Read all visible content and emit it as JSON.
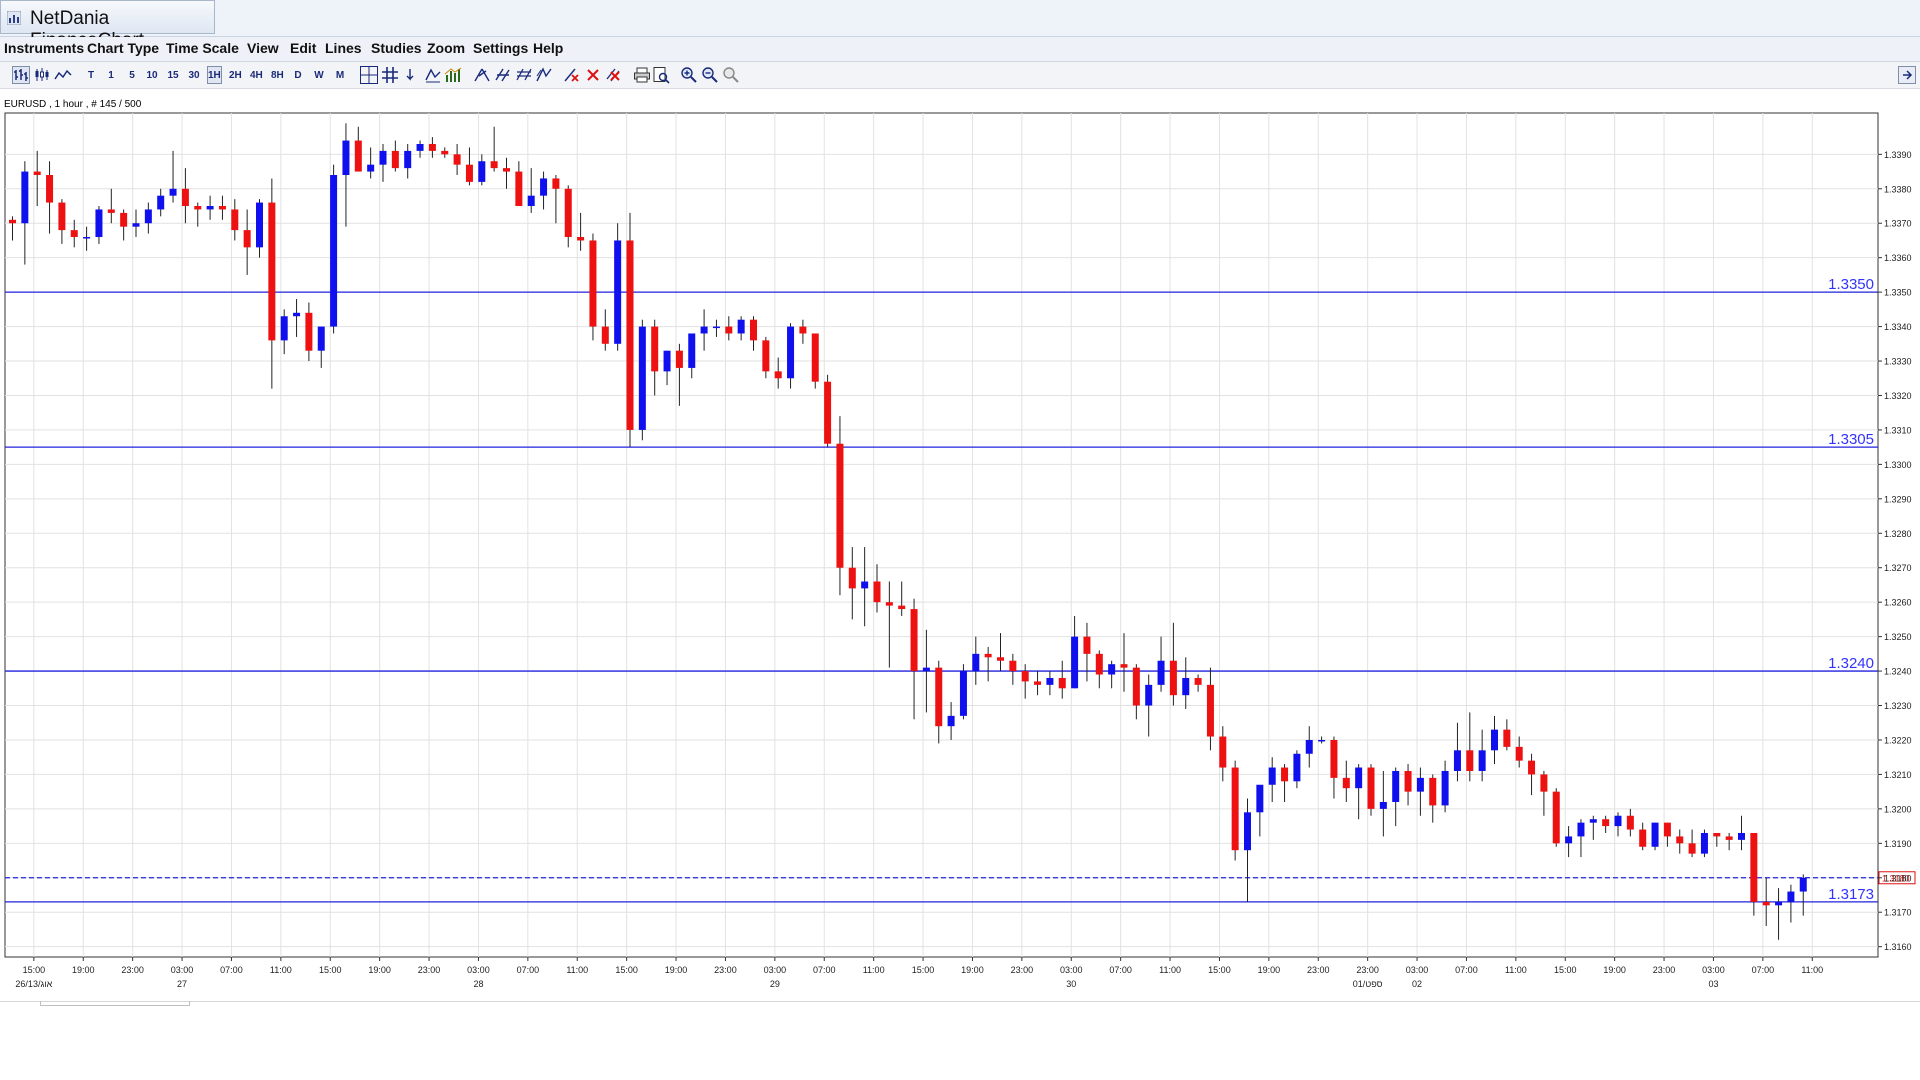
{
  "window": {
    "title": "NetDania FinanceChart"
  },
  "menu": [
    "Instruments",
    "Chart Type",
    "Time Scale",
    "View",
    "Edit",
    "Lines",
    "Studies",
    "Zoom",
    "Settings",
    "Help"
  ],
  "toolbar": {
    "timescales": [
      "T",
      "1",
      "5",
      "10",
      "15",
      "30",
      "1H",
      "2H",
      "4H",
      "8H",
      "D",
      "W",
      "M"
    ],
    "active_timescale": "1H",
    "icons": [
      "bar-chart-icon",
      "candle-chart-icon",
      "line-chart-icon",
      "crosshair-icon",
      "grid-icon",
      "trend-arrow-icon",
      "study-icon",
      "indicator-icon",
      "line-tool-icon",
      "parallel-lines-icon",
      "fibonacci-icon",
      "channel-icon",
      "delete-line-icon",
      "delete-all-icon",
      "print-icon",
      "print-preview-icon",
      "zoom-in-icon",
      "zoom-out-icon",
      "zoom-reset-icon"
    ]
  },
  "instrument_label": "EURUSD , 1 hour , # 145 / 500",
  "colors": {
    "up": "#1010ee",
    "down": "#ee1111",
    "level_line": "#2222dd",
    "grid": "#e2e2e2",
    "level_text": "#3333ff"
  },
  "chart_data": {
    "type": "candlestick",
    "instrument": "EURUSD",
    "interval": "1 hour",
    "ylim": [
      1.3157,
      1.3402
    ],
    "yticks": [
      "1.3160",
      "1.3170",
      "1.3180",
      "1.3190",
      "1.3200",
      "1.3210",
      "1.3220",
      "1.3230",
      "1.3240",
      "1.3250",
      "1.3260",
      "1.3270",
      "1.3280",
      "1.3290",
      "1.3300",
      "1.3310",
      "1.3320",
      "1.3330",
      "1.3340",
      "1.3350",
      "1.3360",
      "1.3370",
      "1.3380",
      "1.3390"
    ],
    "xtick_labels": [
      "15:00",
      "19:00",
      "23:00",
      "03:00",
      "07:00",
      "11:00",
      "15:00",
      "19:00",
      "23:00",
      "03:00",
      "07:00",
      "11:00",
      "15:00",
      "19:00",
      "23:00",
      "03:00",
      "07:00",
      "11:00",
      "15:00",
      "19:00",
      "23:00",
      "03:00",
      "07:00",
      "11:00",
      "15:00",
      "19:00",
      "23:00",
      "23:00",
      "03:00",
      "07:00",
      "11:00",
      "15:00",
      "19:00",
      "23:00",
      "03:00",
      "07:00",
      "11:00"
    ],
    "date_labels": [
      {
        "label": "26/13/אוג",
        "after_tick": 0
      },
      {
        "label": "27",
        "after_tick": 3
      },
      {
        "label": "28",
        "after_tick": 9
      },
      {
        "label": "29",
        "after_tick": 15
      },
      {
        "label": "30",
        "after_tick": 21
      },
      {
        "label": "01/ספט",
        "after_tick": 27
      },
      {
        "label": "02",
        "after_tick": 28
      },
      {
        "label": "03",
        "after_tick": 34
      }
    ],
    "horizontal_levels": [
      {
        "value": 1.335,
        "label": "1.3350"
      },
      {
        "value": 1.3305,
        "label": "1.3305"
      },
      {
        "value": 1.324,
        "label": "1.3240"
      },
      {
        "value": 1.3173,
        "label": "1.3173"
      }
    ],
    "current_price": {
      "value": 1.318,
      "label": "1.3180"
    },
    "candles": [
      [
        1.3371,
        1.3372,
        1.3365,
        1.337
      ],
      [
        1.337,
        1.3388,
        1.3358,
        1.3385
      ],
      [
        1.3385,
        1.3391,
        1.3375,
        1.3384
      ],
      [
        1.3384,
        1.3388,
        1.3367,
        1.3376
      ],
      [
        1.3376,
        1.3377,
        1.3364,
        1.3368
      ],
      [
        1.3368,
        1.3371,
        1.3363,
        1.3366
      ],
      [
        1.3366,
        1.3369,
        1.3362,
        1.3366
      ],
      [
        1.3366,
        1.3375,
        1.3364,
        1.3374
      ],
      [
        1.3374,
        1.338,
        1.337,
        1.3373
      ],
      [
        1.3373,
        1.3374,
        1.3365,
        1.3369
      ],
      [
        1.3369,
        1.3374,
        1.3366,
        1.337
      ],
      [
        1.337,
        1.3376,
        1.3367,
        1.3374
      ],
      [
        1.3374,
        1.338,
        1.3372,
        1.3378
      ],
      [
        1.3378,
        1.3391,
        1.3376,
        1.338
      ],
      [
        1.338,
        1.3386,
        1.337,
        1.3375
      ],
      [
        1.3375,
        1.3376,
        1.3369,
        1.3374
      ],
      [
        1.3374,
        1.3378,
        1.3371,
        1.3375
      ],
      [
        1.3375,
        1.3378,
        1.3371,
        1.3374
      ],
      [
        1.3374,
        1.3377,
        1.3365,
        1.3368
      ],
      [
        1.3368,
        1.3374,
        1.3355,
        1.3363
      ],
      [
        1.3363,
        1.3377,
        1.336,
        1.3376
      ],
      [
        1.3376,
        1.3383,
        1.3322,
        1.3336
      ],
      [
        1.3336,
        1.3345,
        1.3332,
        1.3343
      ],
      [
        1.3343,
        1.3348,
        1.3337,
        1.3344
      ],
      [
        1.3344,
        1.3347,
        1.333,
        1.3333
      ],
      [
        1.3333,
        1.334,
        1.3328,
        1.334
      ],
      [
        1.334,
        1.3387,
        1.3338,
        1.3384
      ],
      [
        1.3384,
        1.3399,
        1.3369,
        1.3394
      ],
      [
        1.3394,
        1.3398,
        1.3385,
        1.3385
      ],
      [
        1.3385,
        1.3392,
        1.3383,
        1.3387
      ],
      [
        1.3387,
        1.3393,
        1.3382,
        1.3391
      ],
      [
        1.3391,
        1.3394,
        1.3385,
        1.3386
      ],
      [
        1.3386,
        1.3393,
        1.3383,
        1.3391
      ],
      [
        1.3391,
        1.3394,
        1.3389,
        1.3393
      ],
      [
        1.3393,
        1.3395,
        1.3389,
        1.3391
      ],
      [
        1.3391,
        1.3392,
        1.3389,
        1.339
      ],
      [
        1.339,
        1.3393,
        1.3384,
        1.3387
      ],
      [
        1.3387,
        1.3392,
        1.3381,
        1.3382
      ],
      [
        1.3382,
        1.339,
        1.3381,
        1.3388
      ],
      [
        1.3388,
        1.3398,
        1.3385,
        1.3386
      ],
      [
        1.3386,
        1.3389,
        1.338,
        1.3385
      ],
      [
        1.3385,
        1.3388,
        1.3375,
        1.3375
      ],
      [
        1.3375,
        1.3386,
        1.3373,
        1.3378
      ],
      [
        1.3378,
        1.3385,
        1.3374,
        1.3383
      ],
      [
        1.3383,
        1.3384,
        1.337,
        1.338
      ],
      [
        1.338,
        1.3381,
        1.3363,
        1.3366
      ],
      [
        1.3366,
        1.3373,
        1.3362,
        1.3365
      ],
      [
        1.3365,
        1.3367,
        1.3336,
        1.334
      ],
      [
        1.334,
        1.3345,
        1.3333,
        1.3335
      ],
      [
        1.3335,
        1.337,
        1.3333,
        1.3365
      ],
      [
        1.3365,
        1.3373,
        1.3305,
        1.331
      ],
      [
        1.331,
        1.3342,
        1.3307,
        1.334
      ],
      [
        1.334,
        1.3342,
        1.332,
        1.3327
      ],
      [
        1.3327,
        1.3333,
        1.3323,
        1.3333
      ],
      [
        1.3333,
        1.3335,
        1.3317,
        1.3328
      ],
      [
        1.3328,
        1.3337,
        1.3325,
        1.3338
      ],
      [
        1.3338,
        1.3345,
        1.3333,
        1.334
      ],
      [
        1.334,
        1.3342,
        1.3337,
        1.334
      ],
      [
        1.334,
        1.3343,
        1.3336,
        1.3338
      ],
      [
        1.3338,
        1.3343,
        1.3336,
        1.3342
      ],
      [
        1.3342,
        1.3343,
        1.3333,
        1.3336
      ],
      [
        1.3336,
        1.3337,
        1.3325,
        1.3327
      ],
      [
        1.3327,
        1.3331,
        1.3322,
        1.3325
      ],
      [
        1.3325,
        1.3341,
        1.3322,
        1.334
      ],
      [
        1.334,
        1.3342,
        1.3335,
        1.3338
      ],
      [
        1.3338,
        1.3338,
        1.3322,
        1.3324
      ],
      [
        1.3324,
        1.3326,
        1.3305,
        1.3306
      ],
      [
        1.3306,
        1.3314,
        1.3262,
        1.327
      ],
      [
        1.327,
        1.3276,
        1.3255,
        1.3264
      ],
      [
        1.3264,
        1.3276,
        1.3253,
        1.3266
      ],
      [
        1.3266,
        1.3271,
        1.3257,
        1.326
      ],
      [
        1.326,
        1.3266,
        1.3241,
        1.3259
      ],
      [
        1.3259,
        1.3266,
        1.3256,
        1.3258
      ],
      [
        1.3258,
        1.3261,
        1.3226,
        1.324
      ],
      [
        1.324,
        1.3252,
        1.3228,
        1.3241
      ],
      [
        1.3241,
        1.3243,
        1.3219,
        1.3224
      ],
      [
        1.3224,
        1.3231,
        1.322,
        1.3227
      ],
      [
        1.3227,
        1.3242,
        1.3226,
        1.324
      ],
      [
        1.324,
        1.325,
        1.3236,
        1.3245
      ],
      [
        1.3245,
        1.3247,
        1.3237,
        1.3244
      ],
      [
        1.3244,
        1.3251,
        1.324,
        1.3243
      ],
      [
        1.3243,
        1.3245,
        1.3236,
        1.324
      ],
      [
        1.324,
        1.3242,
        1.3232,
        1.3237
      ],
      [
        1.3237,
        1.324,
        1.3233,
        1.3236
      ],
      [
        1.3236,
        1.324,
        1.3233,
        1.3238
      ],
      [
        1.3238,
        1.3243,
        1.3232,
        1.3235
      ],
      [
        1.3235,
        1.3256,
        1.3235,
        1.325
      ],
      [
        1.325,
        1.3254,
        1.3237,
        1.3245
      ],
      [
        1.3245,
        1.3246,
        1.3235,
        1.3239
      ],
      [
        1.3239,
        1.3243,
        1.3235,
        1.3242
      ],
      [
        1.3242,
        1.3251,
        1.3234,
        1.3241
      ],
      [
        1.3241,
        1.3242,
        1.3226,
        1.323
      ],
      [
        1.323,
        1.3239,
        1.3221,
        1.3236
      ],
      [
        1.3236,
        1.325,
        1.3234,
        1.3243
      ],
      [
        1.3243,
        1.3254,
        1.323,
        1.3233
      ],
      [
        1.3233,
        1.3244,
        1.3229,
        1.3238
      ],
      [
        1.3238,
        1.3239,
        1.3234,
        1.3236
      ],
      [
        1.3236,
        1.3241,
        1.3217,
        1.3221
      ],
      [
        1.3221,
        1.3224,
        1.3208,
        1.3212
      ],
      [
        1.3212,
        1.3214,
        1.3185,
        1.3188
      ],
      [
        1.3188,
        1.3203,
        1.3173,
        1.3199
      ],
      [
        1.3199,
        1.3206,
        1.3192,
        1.3207
      ],
      [
        1.3207,
        1.3215,
        1.3202,
        1.3212
      ],
      [
        1.3212,
        1.3213,
        1.3202,
        1.3208
      ],
      [
        1.3208,
        1.3217,
        1.3206,
        1.3216
      ],
      [
        1.3216,
        1.3224,
        1.3212,
        1.322
      ],
      [
        1.322,
        1.3221,
        1.3219,
        1.322
      ],
      [
        1.322,
        1.3221,
        1.3203,
        1.3209
      ],
      [
        1.3209,
        1.3214,
        1.3202,
        1.3206
      ],
      [
        1.3206,
        1.3213,
        1.3197,
        1.3212
      ],
      [
        1.3212,
        1.3213,
        1.3198,
        1.32
      ],
      [
        1.32,
        1.3211,
        1.3192,
        1.3202
      ],
      [
        1.3202,
        1.3212,
        1.3195,
        1.3211
      ],
      [
        1.3211,
        1.3213,
        1.3201,
        1.3205
      ],
      [
        1.3205,
        1.3212,
        1.3198,
        1.3209
      ],
      [
        1.3209,
        1.321,
        1.3196,
        1.3201
      ],
      [
        1.3201,
        1.3214,
        1.3199,
        1.3211
      ],
      [
        1.3211,
        1.3225,
        1.3208,
        1.3217
      ],
      [
        1.3217,
        1.3228,
        1.3208,
        1.3211
      ],
      [
        1.3211,
        1.3223,
        1.3208,
        1.3217
      ],
      [
        1.3217,
        1.3227,
        1.3213,
        1.3223
      ],
      [
        1.3223,
        1.3226,
        1.3217,
        1.3218
      ],
      [
        1.3218,
        1.3221,
        1.3212,
        1.3214
      ],
      [
        1.3214,
        1.3216,
        1.3204,
        1.321
      ],
      [
        1.321,
        1.3211,
        1.3198,
        1.3205
      ],
      [
        1.3205,
        1.3206,
        1.3189,
        1.319
      ],
      [
        1.319,
        1.3195,
        1.3186,
        1.3192
      ],
      [
        1.3192,
        1.3197,
        1.3186,
        1.3196
      ],
      [
        1.3196,
        1.3198,
        1.3191,
        1.3197
      ],
      [
        1.3197,
        1.3198,
        1.3193,
        1.3195
      ],
      [
        1.3195,
        1.3199,
        1.3192,
        1.3198
      ],
      [
        1.3198,
        1.32,
        1.3192,
        1.3194
      ],
      [
        1.3194,
        1.3196,
        1.3188,
        1.3189
      ],
      [
        1.3189,
        1.3196,
        1.3188,
        1.3196
      ],
      [
        1.3196,
        1.3196,
        1.3189,
        1.3192
      ],
      [
        1.3192,
        1.3194,
        1.3187,
        1.319
      ],
      [
        1.319,
        1.3194,
        1.3186,
        1.3187
      ],
      [
        1.3187,
        1.3194,
        1.3186,
        1.3193
      ],
      [
        1.3193,
        1.3193,
        1.3189,
        1.3192
      ],
      [
        1.3192,
        1.3193,
        1.3188,
        1.3191
      ],
      [
        1.3191,
        1.3198,
        1.3188,
        1.3193
      ],
      [
        1.3193,
        1.3193,
        1.3169,
        1.3173
      ],
      [
        1.3173,
        1.318,
        1.3166,
        1.3172
      ],
      [
        1.3172,
        1.3177,
        1.3162,
        1.3173
      ],
      [
        1.3173,
        1.3178,
        1.3167,
        1.3176
      ],
      [
        1.3176,
        1.3181,
        1.3169,
        1.318
      ]
    ]
  }
}
